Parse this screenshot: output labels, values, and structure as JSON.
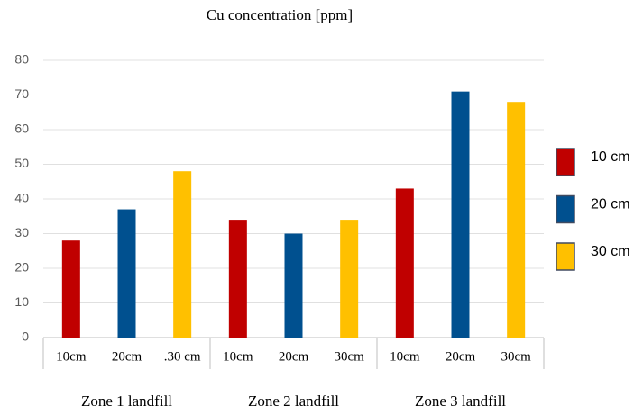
{
  "chart_data": {
    "type": "bar",
    "title": "Cu concentration [ppm]",
    "categories": [
      "Zone 1 landfill",
      "Zone 2 landfill",
      "Zone 3 landfill"
    ],
    "bar_labels": [
      [
        "10cm",
        "20cm",
        ".30 cm"
      ],
      [
        "10cm",
        "20cm",
        "30cm"
      ],
      [
        "10cm",
        "20cm",
        "30cm"
      ]
    ],
    "series": [
      {
        "name": "10 cm",
        "color": "#c00000",
        "values": [
          28,
          34,
          43
        ]
      },
      {
        "name": "20 cm",
        "color": "#00508f",
        "values": [
          37,
          30,
          71
        ]
      },
      {
        "name": "30 cm",
        "color": "#ffc000",
        "values": [
          48,
          34,
          68
        ]
      }
    ],
    "ylim": [
      0,
      80
    ],
    "yticks": [
      0,
      10,
      20,
      30,
      40,
      50,
      60,
      70,
      80
    ],
    "grid": true,
    "legend": "right"
  }
}
